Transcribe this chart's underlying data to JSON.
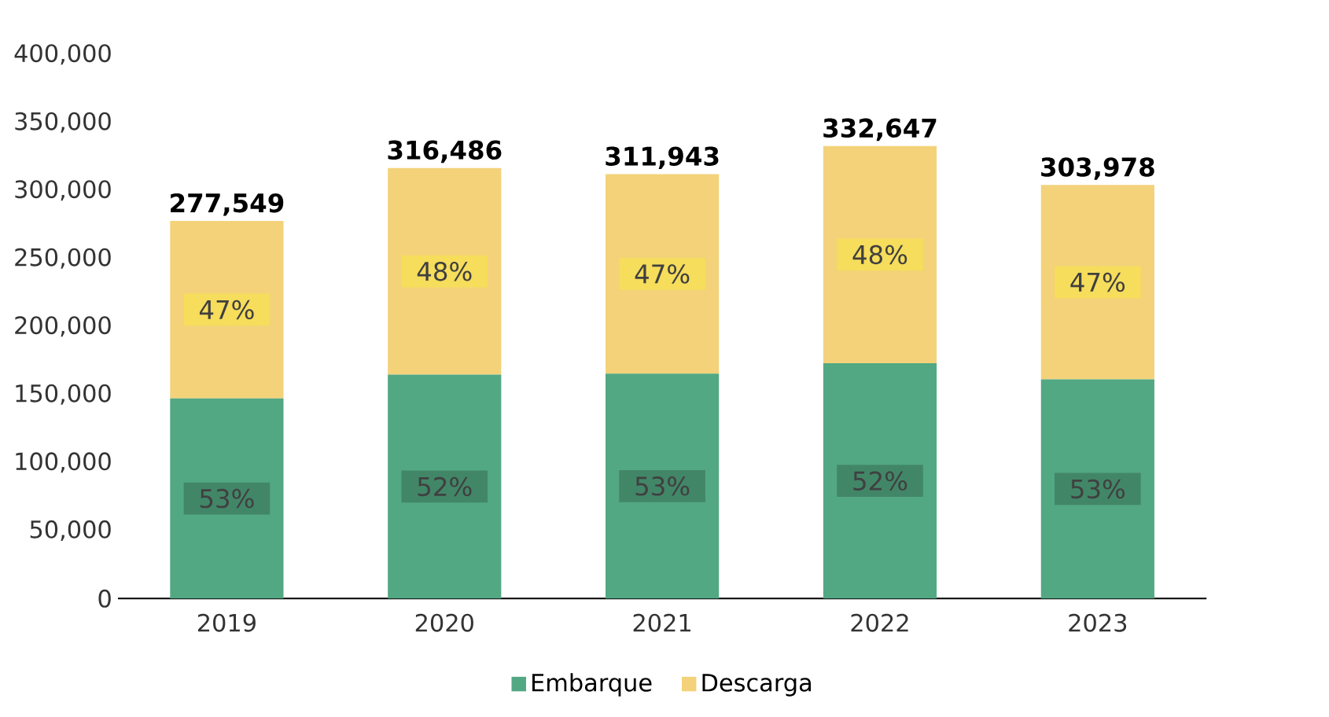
{
  "chart_data": {
    "type": "bar",
    "stacked": true,
    "categories": [
      "2019",
      "2020",
      "2021",
      "2022",
      "2023"
    ],
    "series": [
      {
        "name": "Embarque",
        "color": "#52a882",
        "values": [
          147101,
          164573,
          165330,
          172976,
          161108
        ]
      },
      {
        "name": "Descarga",
        "color": "#f3d27a",
        "values": [
          130448,
          151913,
          146613,
          159671,
          142870
        ]
      }
    ],
    "totals": [
      "277,549",
      "316,486",
      "311,943",
      "332,647",
      "303,978"
    ],
    "annotations": [
      "53%",
      "47%",
      "52%",
      "48%",
      "53%",
      "47%",
      "52%",
      "48%",
      "53%",
      "47%"
    ],
    "ylim": [
      0,
      400000
    ],
    "yticks": [
      {
        "value": 0,
        "label": "0"
      },
      {
        "value": 50000,
        "label": "50,000"
      },
      {
        "value": 100000,
        "label": "100,000"
      },
      {
        "value": 150000,
        "label": "150,000"
      },
      {
        "value": 200000,
        "label": "200,000"
      },
      {
        "value": 250000,
        "label": "250,000"
      },
      {
        "value": 300000,
        "label": "300,000"
      },
      {
        "value": 350000,
        "label": "350,000"
      },
      {
        "value": 400000,
        "label": "400,000"
      }
    ],
    "grid": false,
    "legend": "bottom"
  }
}
